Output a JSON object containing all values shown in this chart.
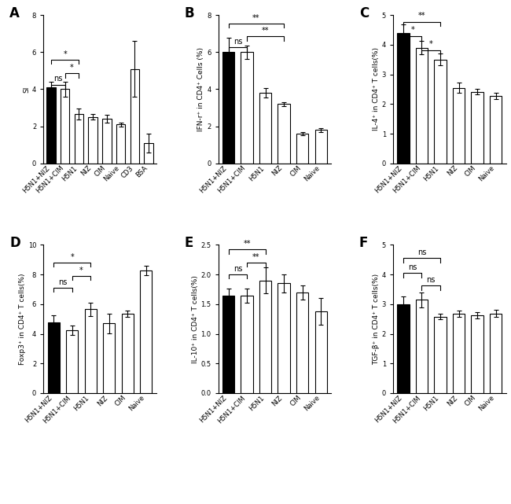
{
  "panels": [
    {
      "label": "A",
      "ylabel": "SI",
      "ylim": [
        0,
        8
      ],
      "yticks": [
        0,
        2,
        4,
        6,
        8
      ],
      "categories": [
        "H5N1+NIZ",
        "H5N1+CIM",
        "H5N1",
        "NIZ",
        "CIM",
        "Naive",
        "CD3",
        "BSA"
      ],
      "values": [
        4.1,
        4.0,
        2.65,
        2.5,
        2.4,
        2.1,
        5.1,
        1.1
      ],
      "errors": [
        0.3,
        0.4,
        0.3,
        0.15,
        0.2,
        0.1,
        1.5,
        0.5
      ],
      "black_bars": [
        0
      ],
      "significance": [
        {
          "bars": [
            0,
            2
          ],
          "y": 5.6,
          "label": "*"
        },
        {
          "bars": [
            1,
            2
          ],
          "y": 4.85,
          "label": "*"
        },
        {
          "bars": [
            0,
            1
          ],
          "y": 4.25,
          "label": "ns"
        }
      ]
    },
    {
      "label": "B",
      "ylabel": "IFN-r⁺ in CD4⁺ Cells (%)",
      "ylim": [
        0,
        8
      ],
      "yticks": [
        0,
        2,
        4,
        6,
        8
      ],
      "categories": [
        "H5N1+NIZ",
        "H5N1+CIM",
        "H5N1",
        "NIZ",
        "CIM",
        "Naive"
      ],
      "values": [
        6.0,
        6.0,
        3.8,
        3.2,
        1.6,
        1.8
      ],
      "errors": [
        0.8,
        0.35,
        0.25,
        0.1,
        0.1,
        0.1
      ],
      "black_bars": [
        0
      ],
      "significance": [
        {
          "bars": [
            0,
            3
          ],
          "y": 7.55,
          "label": "**"
        },
        {
          "bars": [
            1,
            3
          ],
          "y": 6.85,
          "label": "**"
        },
        {
          "bars": [
            0,
            1
          ],
          "y": 6.25,
          "label": "ns"
        }
      ]
    },
    {
      "label": "C",
      "ylabel": "IL-4⁺ in CD4⁺ T cells(%)",
      "ylim": [
        0,
        5
      ],
      "yticks": [
        0,
        1,
        2,
        3,
        4,
        5
      ],
      "categories": [
        "H5N1+NIZ",
        "H5N1+CIM",
        "H5N1",
        "NIZ",
        "CIM",
        "Naive"
      ],
      "values": [
        4.4,
        3.9,
        3.5,
        2.55,
        2.42,
        2.27
      ],
      "errors": [
        0.28,
        0.22,
        0.2,
        0.18,
        0.1,
        0.1
      ],
      "black_bars": [
        0
      ],
      "significance": [
        {
          "bars": [
            0,
            2
          ],
          "y": 4.78,
          "label": "**"
        },
        {
          "bars": [
            0,
            1
          ],
          "y": 4.3,
          "label": "*"
        },
        {
          "bars": [
            1,
            2
          ],
          "y": 3.82,
          "label": "*"
        }
      ]
    },
    {
      "label": "D",
      "ylabel": "Foxp3⁺ in CD4⁺ T cells(%)",
      "ylim": [
        0,
        10
      ],
      "yticks": [
        0,
        2,
        4,
        6,
        8,
        10
      ],
      "categories": [
        "H5N1+NIZ",
        "H5N1+CIM",
        "H5N1",
        "NIZ",
        "CIM",
        "Naive"
      ],
      "values": [
        4.75,
        4.25,
        5.65,
        4.7,
        5.35,
        8.25
      ],
      "errors": [
        0.5,
        0.3,
        0.45,
        0.65,
        0.2,
        0.32
      ],
      "black_bars": [
        0
      ],
      "significance": [
        {
          "bars": [
            0,
            2
          ],
          "y": 8.8,
          "label": "*"
        },
        {
          "bars": [
            1,
            2
          ],
          "y": 7.9,
          "label": "*"
        },
        {
          "bars": [
            0,
            1
          ],
          "y": 7.1,
          "label": "ns"
        }
      ]
    },
    {
      "label": "E",
      "ylabel": "IL-10⁺ in CD4⁺ T cells(%)",
      "ylim": [
        0.0,
        2.5
      ],
      "yticks": [
        0.0,
        0.5,
        1.0,
        1.5,
        2.0,
        2.5
      ],
      "categories": [
        "H5N1+NIZ",
        "H5N1+CIM",
        "H5N1",
        "NIZ",
        "CIM",
        "Naive"
      ],
      "values": [
        1.65,
        1.65,
        1.9,
        1.85,
        1.7,
        1.38
      ],
      "errors": [
        0.12,
        0.12,
        0.22,
        0.15,
        0.12,
        0.22
      ],
      "black_bars": [
        0
      ],
      "significance": [
        {
          "bars": [
            0,
            2
          ],
          "y": 2.42,
          "label": "**"
        },
        {
          "bars": [
            1,
            2
          ],
          "y": 2.2,
          "label": "**"
        },
        {
          "bars": [
            0,
            1
          ],
          "y": 2.0,
          "label": "ns"
        }
      ]
    },
    {
      "label": "F",
      "ylabel": "TGF-β⁺ in CD4⁺ T cells(%)",
      "ylim": [
        0,
        5
      ],
      "yticks": [
        0,
        1,
        2,
        3,
        4,
        5
      ],
      "categories": [
        "H5N1+NIZ",
        "H5N1+CIM",
        "H5N1",
        "NIZ",
        "CIM",
        "Naive"
      ],
      "values": [
        3.0,
        3.15,
        2.58,
        2.68,
        2.62,
        2.68
      ],
      "errors": [
        0.25,
        0.25,
        0.1,
        0.1,
        0.1,
        0.12
      ],
      "black_bars": [
        0
      ],
      "significance": [
        {
          "bars": [
            0,
            2
          ],
          "y": 4.55,
          "label": "ns"
        },
        {
          "bars": [
            0,
            1
          ],
          "y": 4.05,
          "label": "ns"
        },
        {
          "bars": [
            1,
            2
          ],
          "y": 3.62,
          "label": "ns"
        }
      ]
    }
  ],
  "bar_width": 0.65,
  "black_color": "#000000",
  "white_color": "#ffffff",
  "edge_color": "#000000",
  "fontsize_ylabel": 6.5,
  "fontsize_tick": 6.0,
  "fontsize_panel": 12,
  "fontsize_sig": 7.0
}
